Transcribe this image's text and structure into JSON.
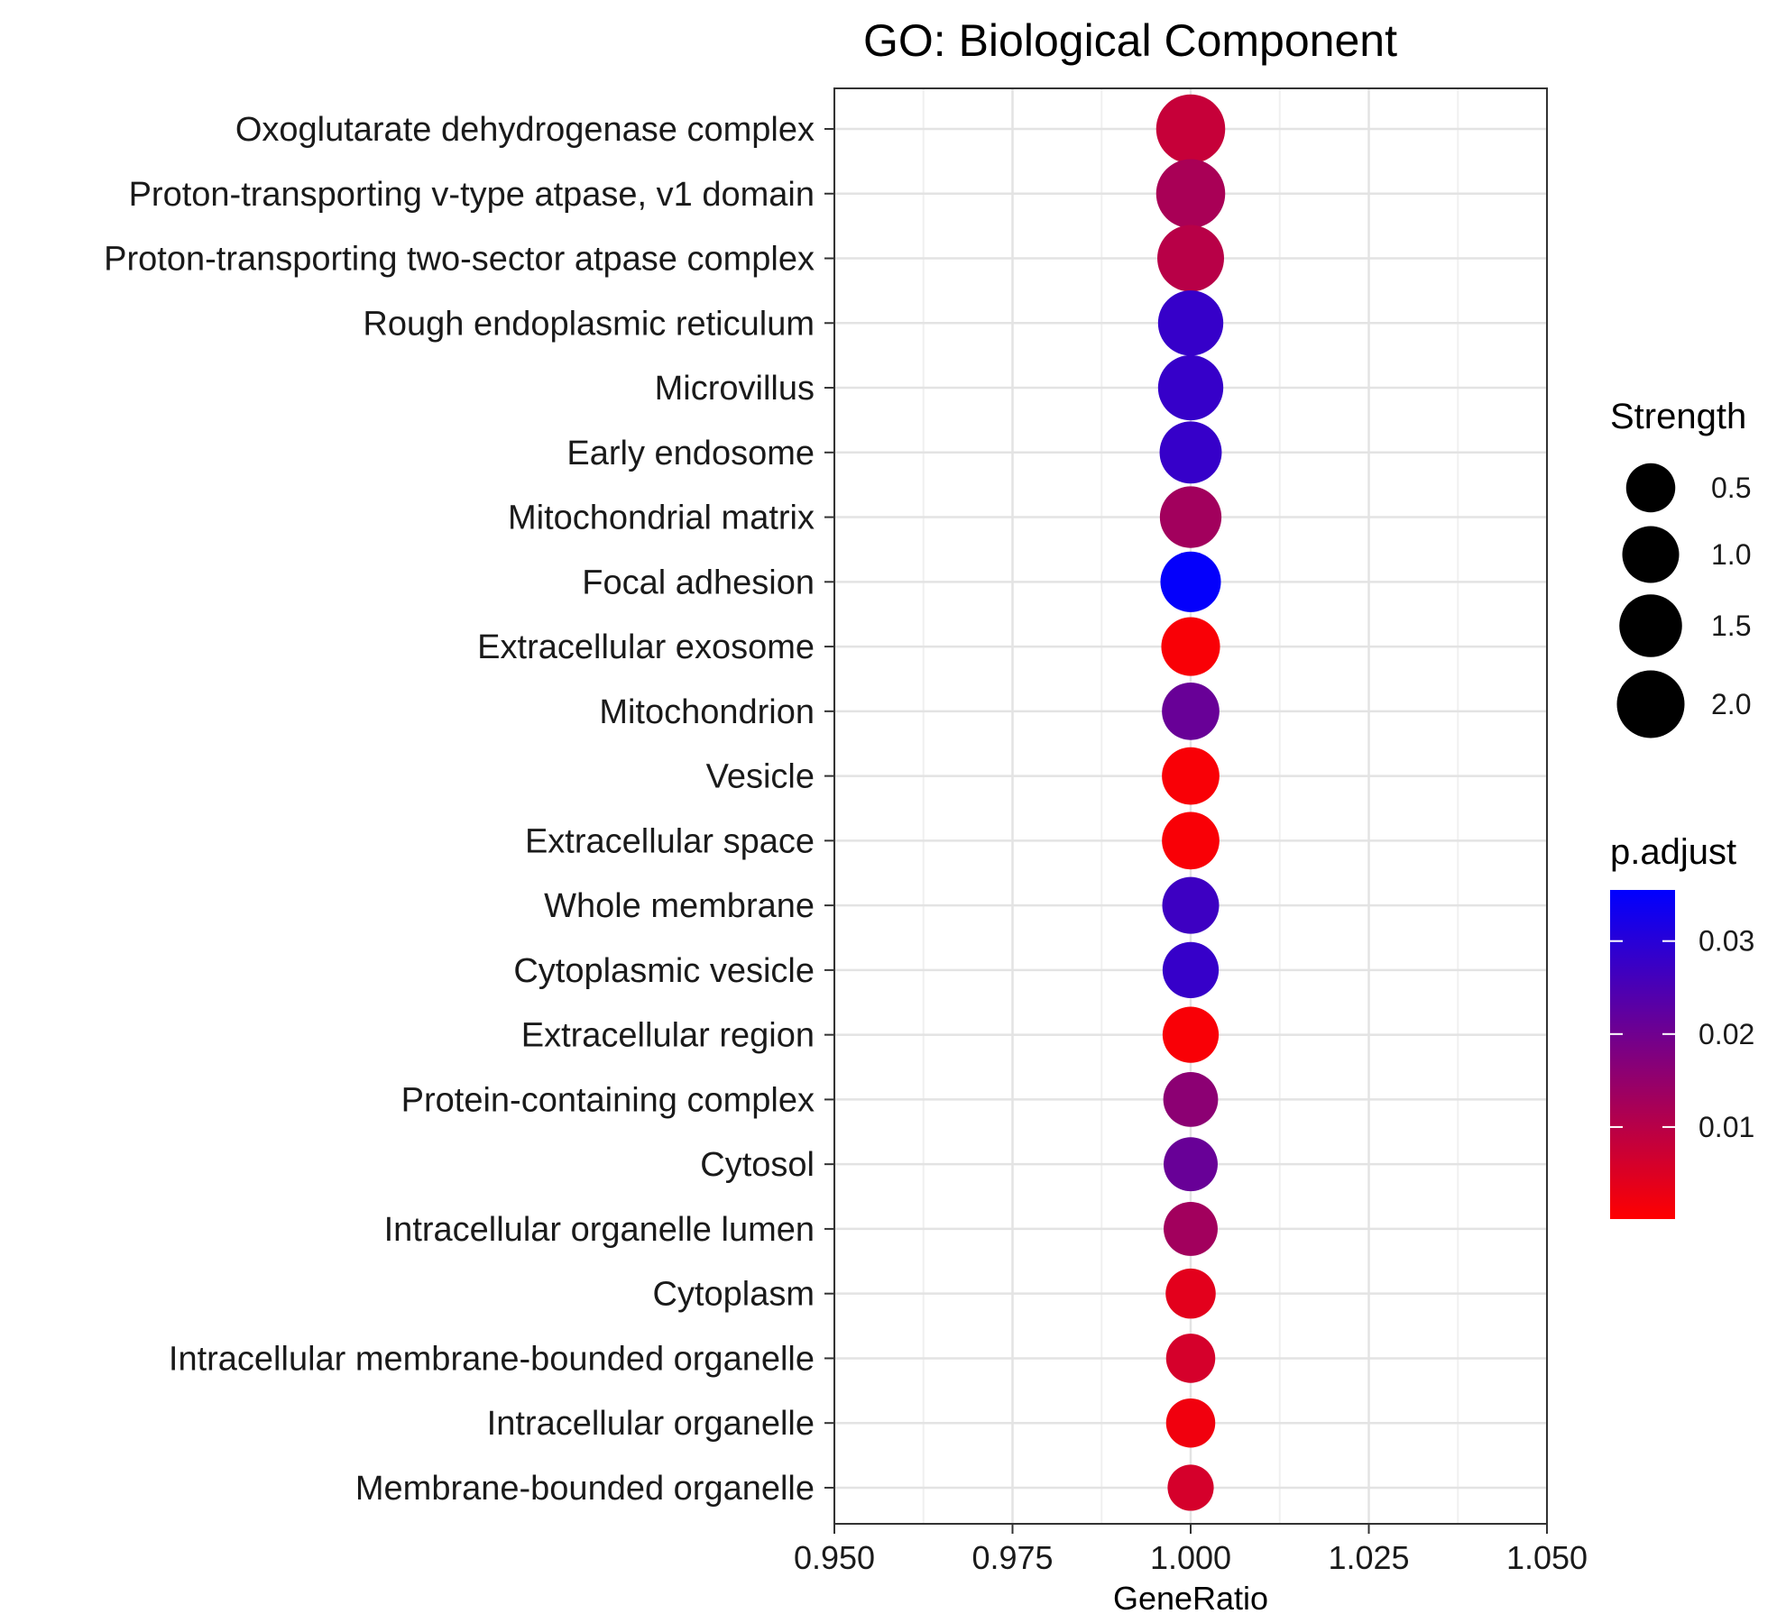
{
  "chart_data": {
    "type": "scatter",
    "title": "GO: Biological Component",
    "xlabel": "GeneRatio",
    "ylabel": "",
    "xlim": [
      0.95,
      1.05
    ],
    "xticks": [
      "0.950",
      "0.975",
      "1.000",
      "1.025",
      "1.050"
    ],
    "grid": true,
    "legend_position": "right",
    "categories": [
      "Oxoglutarate dehydrogenase complex",
      "Proton-transporting v-type atpase, v1 domain",
      "Proton-transporting two-sector atpase complex",
      "Rough endoplasmic reticulum",
      "Microvillus",
      "Early endosome",
      "Mitochondrial matrix",
      "Focal adhesion",
      "Extracellular exosome",
      "Mitochondrion",
      "Vesicle",
      "Extracellular space",
      "Whole membrane",
      "Cytoplasmic vesicle",
      "Extracellular region",
      "Protein-containing complex",
      "Cytosol",
      "Intracellular organelle lumen",
      "Cytoplasm",
      "Intracellular membrane-bounded organelle",
      "Intracellular organelle",
      "Membrane-bounded organelle"
    ],
    "x": [
      1,
      1,
      1,
      1,
      1,
      1,
      1,
      1,
      1,
      1,
      1,
      1,
      1,
      1,
      1,
      1,
      1,
      1,
      1,
      1,
      1,
      1
    ],
    "strength": [
      2.15,
      2.15,
      1.9,
      1.75,
      1.75,
      1.45,
      1.4,
      1.3,
      1.15,
      1.05,
      1.05,
      1.05,
      1.0,
      0.95,
      0.95,
      0.85,
      0.8,
      0.8,
      0.55,
      0.5,
      0.5,
      0.35
    ],
    "p_adjust": [
      0.008,
      0.012,
      0.01,
      0.028,
      0.028,
      0.028,
      0.013,
      0.035,
      0.001,
      0.021,
      0.001,
      0.001,
      0.027,
      0.028,
      0.001,
      0.016,
      0.021,
      0.013,
      0.004,
      0.006,
      0.002,
      0.006
    ],
    "size_legend": {
      "title": "Strength",
      "values": [
        0.5,
        1.0,
        1.5,
        2.0
      ],
      "labels": [
        "0.5",
        "1.0",
        "1.5",
        "2.0"
      ]
    },
    "color_legend": {
      "title": "p.adjust",
      "range": [
        0.0001,
        0.0355
      ],
      "ticks": [
        0.01,
        0.02,
        0.03
      ],
      "labels": [
        "0.01",
        "0.02",
        "0.03"
      ],
      "low_color": "#ff0000",
      "high_color": "#0000ff"
    }
  }
}
